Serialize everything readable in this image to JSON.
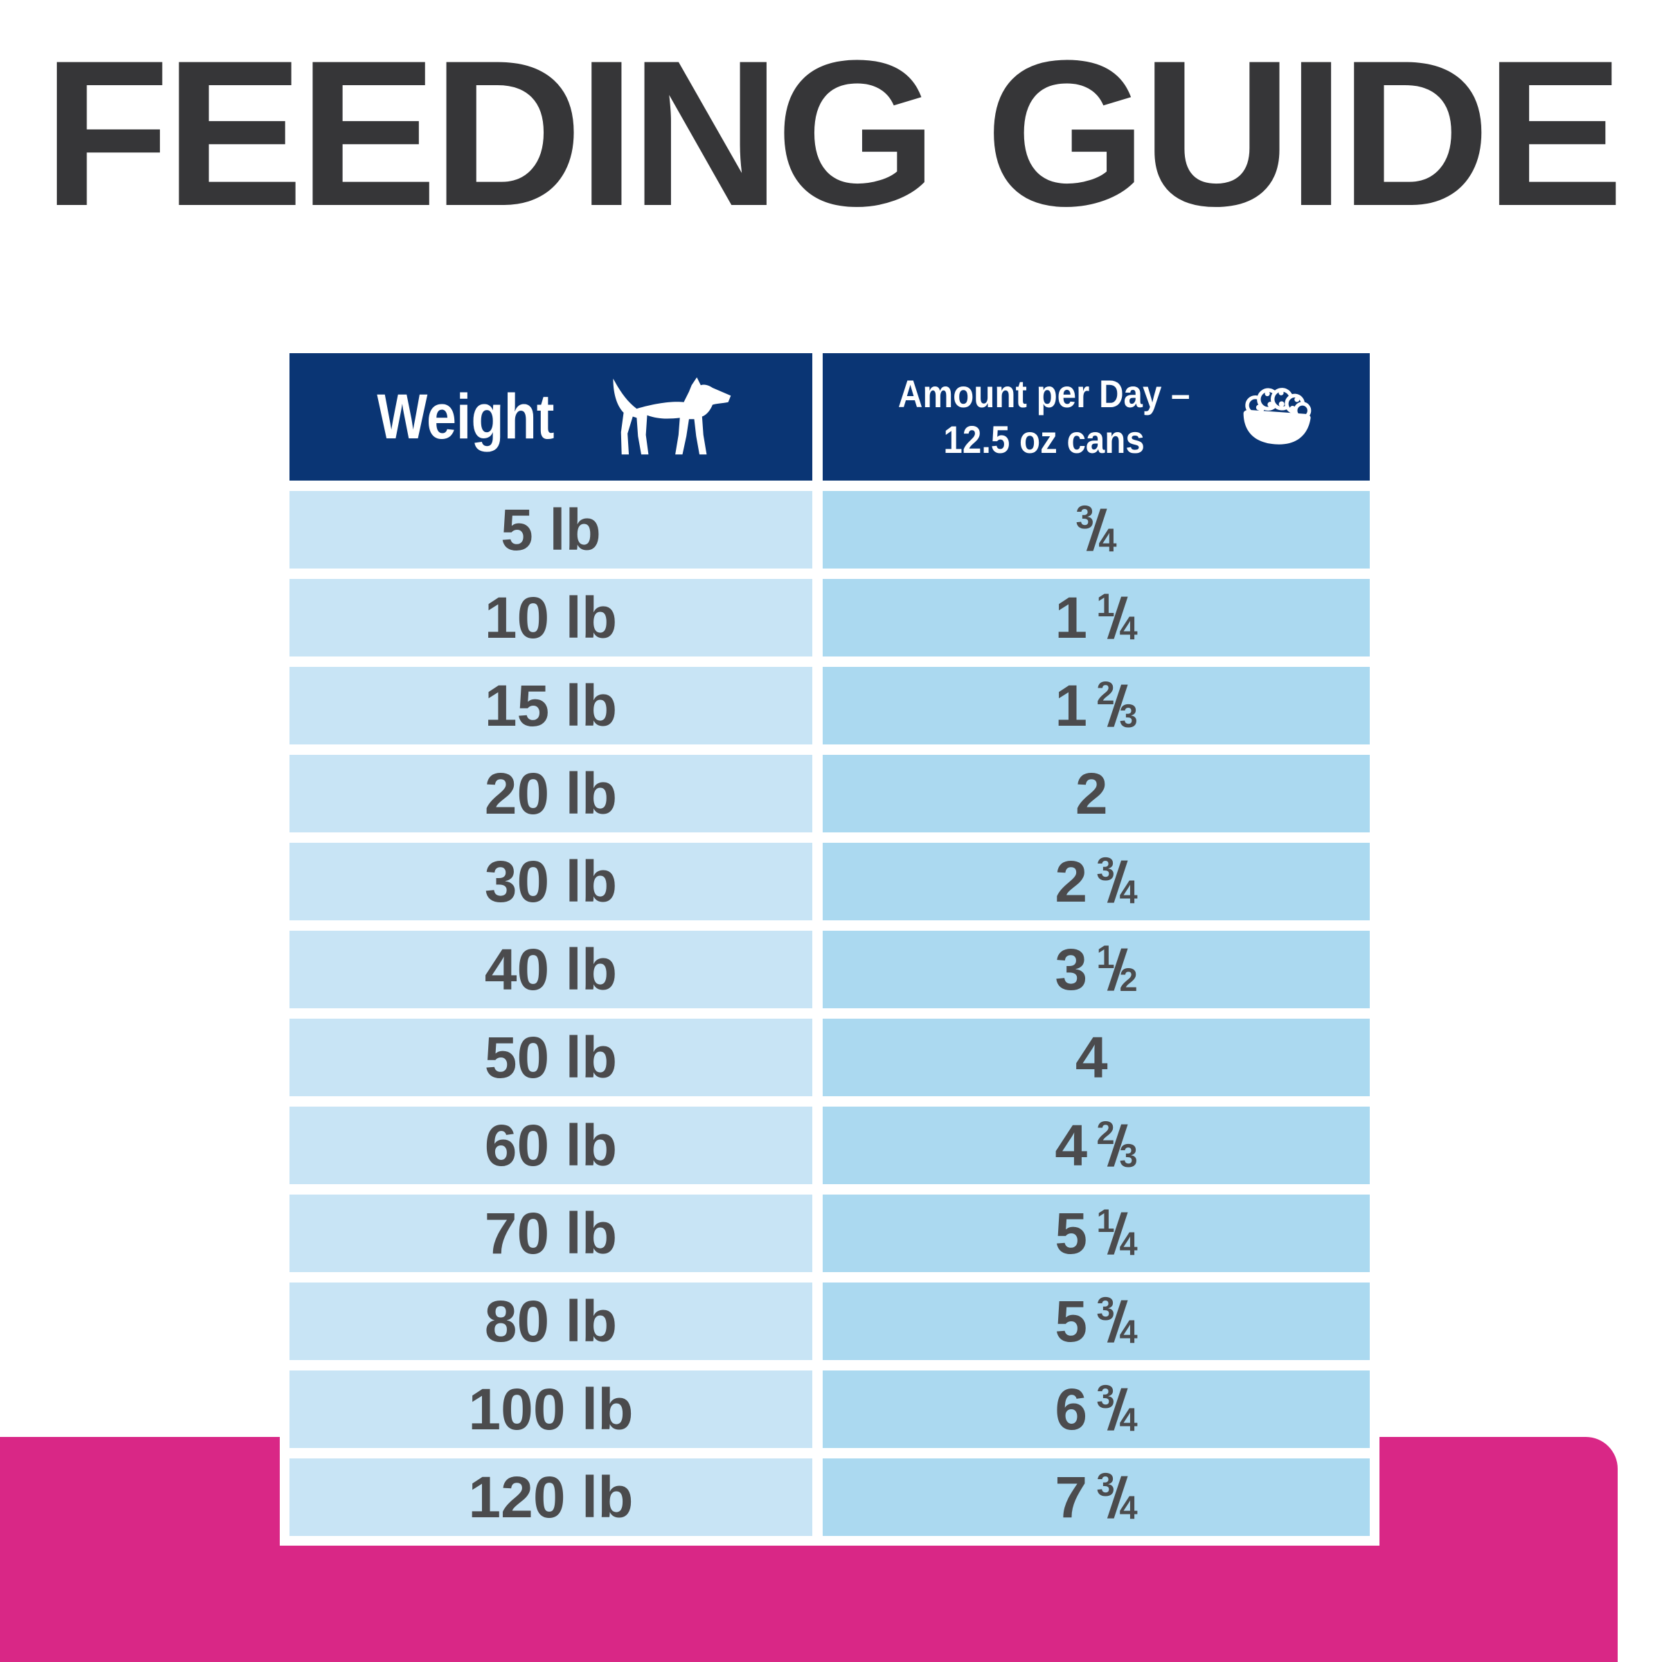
{
  "page": {
    "title": "FEEDING GUIDE"
  },
  "table": {
    "headers": {
      "weight": {
        "label": "Weight",
        "icon": "dog-icon"
      },
      "amount": {
        "label_line1": "Amount per Day –",
        "label_line2": "12.5 oz cans",
        "icon": "food-bowl-icon"
      }
    },
    "rows": [
      {
        "weight": "5 lb",
        "amount": {
          "whole": "",
          "num": "3",
          "den": "4"
        }
      },
      {
        "weight": "10 lb",
        "amount": {
          "whole": "1",
          "num": "1",
          "den": "4"
        }
      },
      {
        "weight": "15 lb",
        "amount": {
          "whole": "1",
          "num": "2",
          "den": "3"
        }
      },
      {
        "weight": "20 lb",
        "amount": {
          "whole": "2",
          "num": "",
          "den": ""
        }
      },
      {
        "weight": "30 lb",
        "amount": {
          "whole": "2",
          "num": "3",
          "den": "4"
        }
      },
      {
        "weight": "40 lb",
        "amount": {
          "whole": "3",
          "num": "1",
          "den": "2"
        }
      },
      {
        "weight": "50 lb",
        "amount": {
          "whole": "4",
          "num": "",
          "den": ""
        }
      },
      {
        "weight": "60 lb",
        "amount": {
          "whole": "4",
          "num": "2",
          "den": "3"
        }
      },
      {
        "weight": "70 lb",
        "amount": {
          "whole": "5",
          "num": "1",
          "den": "4"
        }
      },
      {
        "weight": "80 lb",
        "amount": {
          "whole": "5",
          "num": "3",
          "den": "4"
        }
      },
      {
        "weight": "100 lb",
        "amount": {
          "whole": "6",
          "num": "3",
          "den": "4"
        }
      },
      {
        "weight": "120 lb",
        "amount": {
          "whole": "7",
          "num": "3",
          "den": "4"
        }
      }
    ]
  },
  "chart_data": {
    "type": "table",
    "title": "FEEDING GUIDE",
    "columns": [
      "Weight",
      "Amount per Day – 12.5 oz cans"
    ],
    "rows": [
      [
        "5 lb",
        "3/4"
      ],
      [
        "10 lb",
        "1 1/4"
      ],
      [
        "15 lb",
        "1 2/3"
      ],
      [
        "20 lb",
        "2"
      ],
      [
        "30 lb",
        "2 3/4"
      ],
      [
        "40 lb",
        "3 1/2"
      ],
      [
        "50 lb",
        "4"
      ],
      [
        "60 lb",
        "4 2/3"
      ],
      [
        "70 lb",
        "5 1/4"
      ],
      [
        "80 lb",
        "5 3/4"
      ],
      [
        "100 lb",
        "6 3/4"
      ],
      [
        "120 lb",
        "7 3/4"
      ]
    ]
  },
  "colors": {
    "header_bg": "#0a3574",
    "weight_cell_bg": "#c8e4f5",
    "amount_cell_bg": "#abd9f0",
    "accent_pink": "#d92786",
    "title_text": "#363638",
    "row_text": "#4b4b4d",
    "header_text": "#ffffff"
  }
}
